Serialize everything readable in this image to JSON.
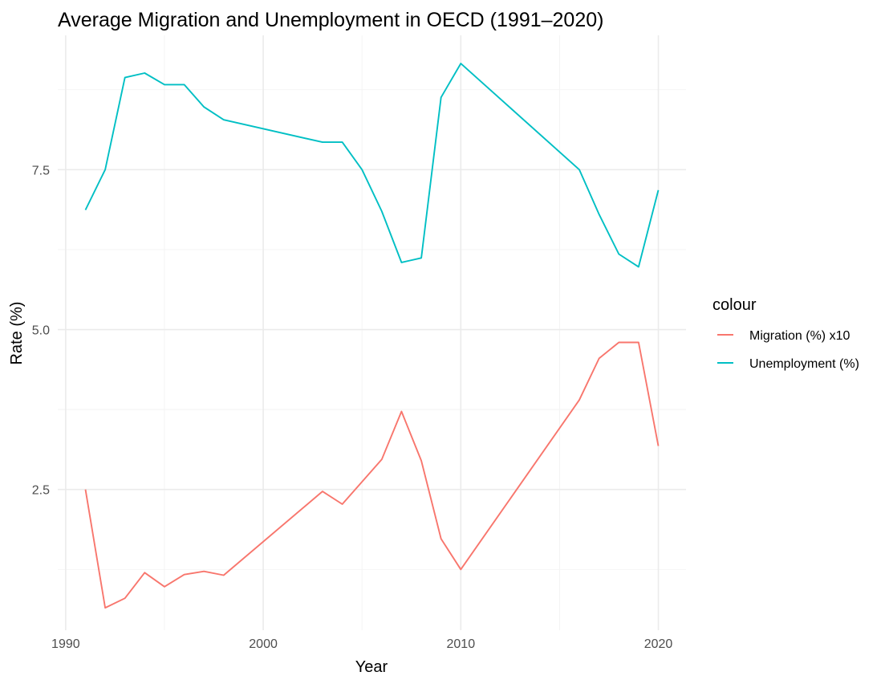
{
  "chart_data": {
    "type": "line",
    "title": "Average Migration and Unemployment in OECD (1991–2020)",
    "xlabel": "Year",
    "ylabel": "Rate (%)",
    "xlim": [
      1989.6,
      2021.4
    ],
    "ylim": [
      0.3,
      9.6
    ],
    "x_ticks": [
      1990,
      2000,
      2010,
      2020
    ],
    "x_tick_labels": [
      "1990",
      "2000",
      "2010",
      "2020"
    ],
    "x_minor_ticks": [
      1995,
      2005,
      2015
    ],
    "y_ticks": [
      2.5,
      5.0,
      7.5
    ],
    "y_tick_labels": [
      "2.5",
      "5.0",
      "7.5"
    ],
    "y_minor_ticks": [
      1.25,
      3.75,
      6.25,
      8.75
    ],
    "grid": true,
    "legend_title": "colour",
    "legend_position": "right",
    "series": [
      {
        "name": "Migration (%) x10",
        "color": "#F8766D",
        "x": [
          1991,
          1992,
          1993,
          1994,
          1995,
          1996,
          1997,
          1998,
          2003,
          2004,
          2006,
          2007,
          2008,
          2009,
          2010,
          2016,
          2017,
          2018,
          2019,
          2020
        ],
        "y": [
          2.5,
          0.65,
          0.8,
          1.2,
          0.98,
          1.17,
          1.22,
          1.16,
          2.47,
          2.27,
          2.97,
          3.72,
          2.95,
          1.73,
          1.25,
          3.9,
          4.55,
          4.8,
          4.8,
          3.18
        ]
      },
      {
        "name": "Unemployment (%)",
        "color": "#00BFC4",
        "x": [
          1991,
          1992,
          1993,
          1994,
          1995,
          1996,
          1997,
          1998,
          2003,
          2004,
          2005,
          2006,
          2007,
          2008,
          2009,
          2010,
          2016,
          2017,
          2018,
          2019,
          2020
        ],
        "y": [
          6.87,
          7.5,
          8.94,
          9.01,
          8.83,
          8.83,
          8.48,
          8.28,
          7.93,
          7.93,
          7.5,
          6.85,
          6.05,
          6.12,
          8.63,
          9.16,
          7.5,
          6.8,
          6.18,
          5.98,
          7.18
        ]
      }
    ]
  }
}
